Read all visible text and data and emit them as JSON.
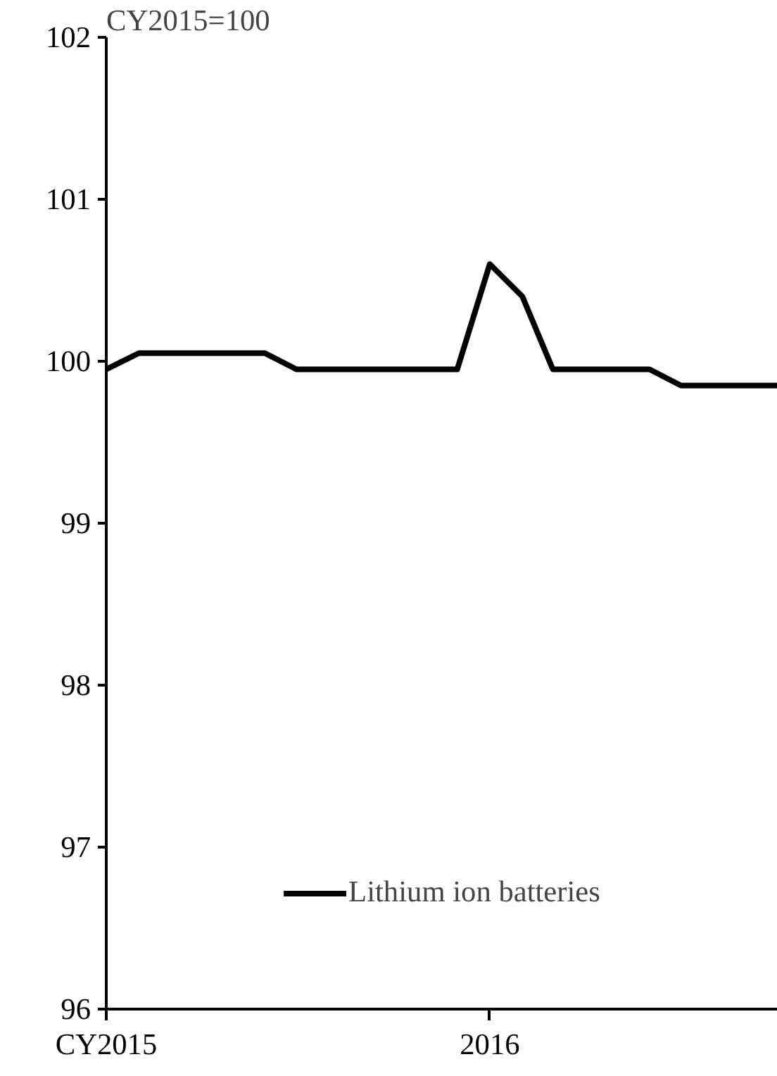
{
  "chart_data": {
    "type": "line",
    "ylabel": "CY2015=100",
    "x": [
      "2015-01",
      "2015-02",
      "2015-03",
      "2015-04",
      "2015-05",
      "2015-06",
      "2015-07",
      "2015-08",
      "2015-09",
      "2015-10",
      "2015-11",
      "2015-12",
      "2016-01",
      "2016-02",
      "2016-03",
      "2016-04",
      "2016-05",
      "2016-06",
      "2016-07",
      "2016-08",
      "2016-09",
      "2016-10"
    ],
    "series": [
      {
        "name": "Lithium ion batteries",
        "color": "#000000",
        "values": [
          99.95,
          100.05,
          100.05,
          100.05,
          100.05,
          100.05,
          99.95,
          99.95,
          99.95,
          99.95,
          99.95,
          99.95,
          100.6,
          100.4,
          99.95,
          99.95,
          99.95,
          99.95,
          99.85,
          99.85,
          99.85,
          99.85
        ]
      }
    ],
    "xlim": [
      "2015-01",
      "2016-10"
    ],
    "xticks": [
      {
        "value": "2015-01",
        "label": "CY2015"
      },
      {
        "value": "2016-01",
        "label": "2016"
      }
    ],
    "ylim": [
      96,
      102
    ],
    "yticks": [
      96,
      97,
      98,
      99,
      100,
      101,
      102
    ],
    "grid": false,
    "legend": "bottom",
    "marker": "none",
    "line_style": "solid"
  }
}
